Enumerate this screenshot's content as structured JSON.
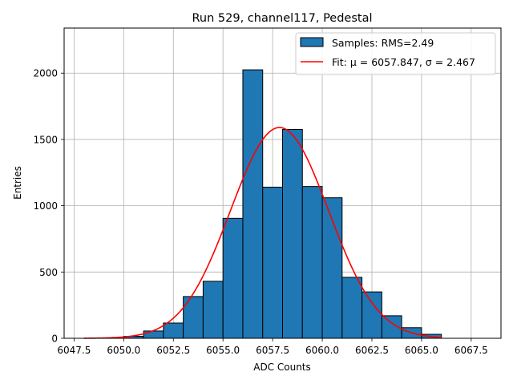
{
  "chart_data": {
    "type": "bar",
    "title": "Run 529, channel117, Pedestal",
    "xlabel": "ADC Counts",
    "ylabel": "Entries",
    "xlim": [
      6047.0,
      6069.0
    ],
    "ylim": [
      0,
      2340
    ],
    "xticks": [
      6047.5,
      6050.0,
      6052.5,
      6055.0,
      6057.5,
      6060.0,
      6062.5,
      6065.0,
      6067.5
    ],
    "xtick_labels": [
      "6047.5",
      "6050.0",
      "6052.5",
      "6055.0",
      "6057.5",
      "6060.0",
      "6062.5",
      "6065.0",
      "6067.5"
    ],
    "yticks": [
      0,
      500,
      1000,
      1500,
      2000
    ],
    "ytick_labels": [
      "0",
      "500",
      "1000",
      "1500",
      "2000"
    ],
    "grid": true,
    "legend_position": "top-right",
    "bins": {
      "left_edges": [
        6050,
        6051,
        6052,
        6053,
        6054,
        6055,
        6056,
        6057,
        6058,
        6059,
        6060,
        6061,
        6062,
        6063,
        6064,
        6065
      ],
      "width": 1.0,
      "values": [
        15,
        55,
        115,
        315,
        430,
        905,
        2025,
        1140,
        1575,
        1145,
        1060,
        460,
        350,
        170,
        80,
        30
      ]
    },
    "series": [
      {
        "name": "Samples: RMS=2.49",
        "kind": "histogram",
        "color": "#1f77b4"
      },
      {
        "name": "Fit: μ = 6057.847, σ = 2.467",
        "kind": "gaussian-fit",
        "color": "#ff0000",
        "mu": 6057.847,
        "sigma": 2.467,
        "amplitude": 1590,
        "x_range": [
          6048.0,
          6066.0
        ]
      }
    ]
  }
}
